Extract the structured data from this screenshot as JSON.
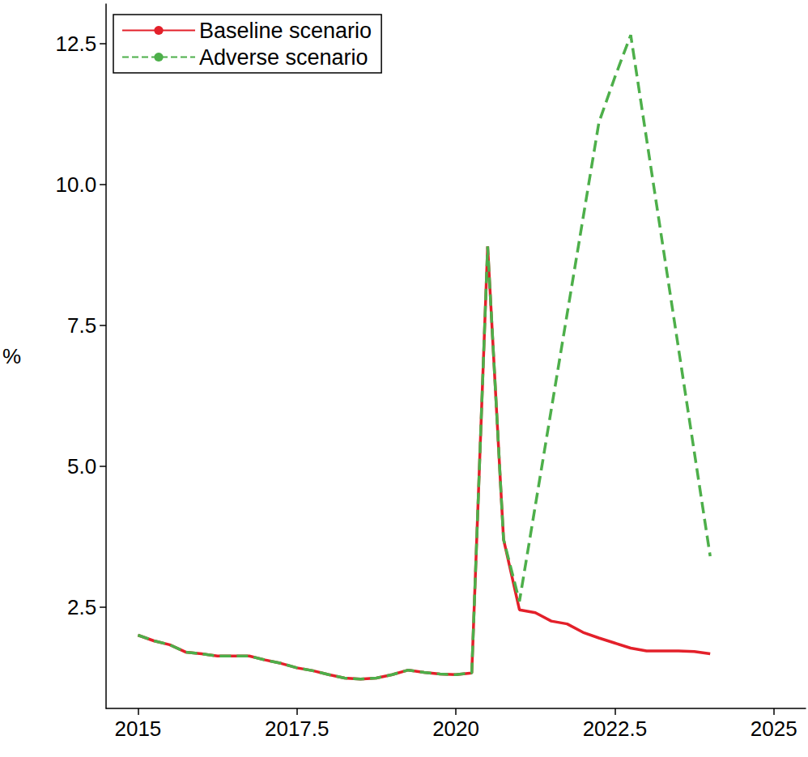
{
  "chart_data": {
    "type": "line",
    "y_label": "%",
    "legend": "upper left",
    "grid": false,
    "x": [
      2015,
      2015.25,
      2015.5,
      2015.75,
      2016,
      2016.25,
      2016.5,
      2016.75,
      2017,
      2017.25,
      2017.5,
      2017.75,
      2018,
      2018.25,
      2018.5,
      2018.75,
      2019,
      2019.25,
      2019.5,
      2019.75,
      2020,
      2020.25,
      2020.5,
      2020.75,
      2021,
      2021.25,
      2021.5,
      2021.75,
      2022,
      2022.25,
      2022.5,
      2022.75,
      2023,
      2023.25,
      2023.5,
      2023.75,
      2024
    ],
    "xlim": [
      2014.5,
      2025.5
    ],
    "xticks": [
      2015,
      2017.5,
      2020,
      2022.5,
      2025
    ],
    "ylim": [
      0.7,
      13.2
    ],
    "yticks": [
      2.5,
      {
        "value": 5,
        "label": "5.0"
      },
      7.5,
      {
        "value": 10,
        "label": "10.0"
      },
      12.5
    ],
    "series": [
      {
        "name": "Baseline scenario",
        "color": "#e3202a",
        "line_style": "solid",
        "values": [
          2.0,
          1.9,
          1.83,
          1.7,
          1.67,
          1.63,
          1.63,
          1.63,
          1.56,
          1.5,
          1.42,
          1.37,
          1.3,
          1.24,
          1.22,
          1.24,
          1.3,
          1.38,
          1.34,
          1.31,
          1.3,
          1.33,
          8.9,
          3.7,
          2.45,
          2.4,
          2.25,
          2.2,
          2.05,
          1.95,
          1.86,
          1.77,
          1.72,
          1.72,
          1.72,
          1.71,
          1.67
        ]
      },
      {
        "name": "Adverse scenario",
        "color": "#4daf4a",
        "line_style": "dashed",
        "values": [
          2.0,
          1.9,
          1.83,
          1.7,
          1.67,
          1.63,
          1.63,
          1.63,
          1.56,
          1.5,
          1.42,
          1.37,
          1.3,
          1.24,
          1.22,
          1.24,
          1.3,
          1.38,
          1.34,
          1.31,
          1.3,
          1.33,
          8.9,
          3.7,
          2.6,
          4.3,
          6.0,
          7.7,
          9.4,
          11.1,
          11.9,
          12.65,
          10.8,
          8.95,
          7.1,
          5.25,
          3.4
        ]
      }
    ]
  }
}
